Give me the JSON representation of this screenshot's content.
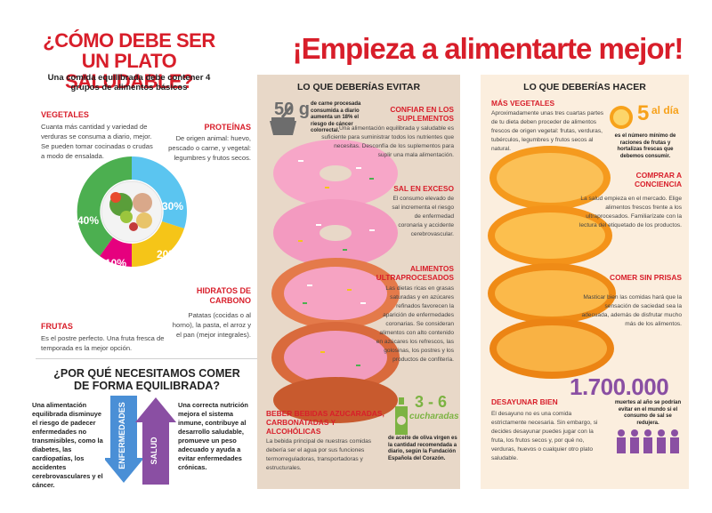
{
  "left": {
    "title": "¿CÓMO DEBE SER UN PLATO SALUDABLE?",
    "subtitle": "Una comida equilibrada debe contener 4 grupos de alimentos básicos",
    "vegetales": {
      "title": "VEGETALES",
      "body": "Cuanta más cantidad y variedad de verduras se consuma a diario, mejor. Se pueden tomar cocinadas o crudas a modo de ensalada.",
      "pct": "40%"
    },
    "proteinas": {
      "title": "PROTEÍNAS",
      "body": "De origen animal: huevo, pescado o carne, y vegetal: legumbres y frutos secos.",
      "pct": "30%"
    },
    "hidratos": {
      "title": "HIDRATOS DE CARBONO",
      "body": "Patatas (cocidas o al horno), la pasta, el arroz y el pan (mejor integrales).",
      "pct": "20%"
    },
    "frutas": {
      "title": "FRUTAS",
      "body": "Es el postre perfecto. Una fruta fresca de temporada es la mejor opción.",
      "pct": "10%"
    },
    "why_title": "¿POR QUÉ NECESITAMOS COMER DE FORMA EQUILIBRADA?",
    "why_left": "Una alimentación equilibrada disminuye el riesgo de padecer enfermedades no transmisibles, como la diabetes, las cardiopatías, los accidentes cerebrovasculares y el cáncer.",
    "why_right": "Una correcta nutrición mejora el sistema inmune, contribuye al desarrollo saludable, promueve un peso adecuado y ayuda a evitar enfermedades crónicas.",
    "arrow_down": "ENFERMEDADES",
    "arrow_up": "SALUD"
  },
  "main_title": "¡Empieza a alimentarte mejor!",
  "evitar": {
    "header": "LO QUE DEBERÍAS EVITAR",
    "sugar_value": "50 g",
    "sugar_text": "de carne procesada consumida a diario aumenta un 18% el riesgo de cáncer colorrectal.",
    "suplementos_title": "CONFIAR EN LOS SUPLEMENTOS",
    "suplementos_body": "Una alimentación equilibrada y saludable es suficiente para suministrar todos los nutrientes que necesitas. Desconfía de los suplementos para suplir una mala alimentación.",
    "sal_title": "SAL EN EXCESO",
    "sal_body": "El consumo elevado de sal incrementa el riesgo de enfermedad coronaria y accidente cerebrovascular.",
    "ultra_title": "ALIMENTOS ULTRAPROCESADOS",
    "ultra_body": "Las dietas ricas en grasas saturadas y en azúcares refinados favorecen la aparición de enfermedades coronarias. Se consideran alimentos con alto contenido en azúcares los refrescos, las golosinas, los postres y los productos de confitería.",
    "bebidas_title": "BEBER BEBIDAS AZUCARADAS, CARBONATADAS Y ALCOHÓLICAS",
    "bebidas_body": "La bebida principal de nuestras comidas debería ser el agua por sus funciones termorreguladoras, transportadoras y estructurales.",
    "oil_value": "3 - 6",
    "oil_unit": "cucharadas",
    "oil_text": "de aceite de oliva virgen es la cantidad recomendada a diario, según la Fundación Española del Corazón."
  },
  "hacer": {
    "header": "LO QUE DEBERÍAS HACER",
    "veg_title": "MÁS VEGETALES",
    "veg_body": "Aproximadamente unas tres cuartas partes de tu dieta deben proceder de alimentos frescos de origen vegetal: frutas, verduras, tubérculos, legumbres y frutos secos al natural.",
    "five_value": "5",
    "five_unit": "al día",
    "five_text": "es el número mínimo de raciones de frutas y hortalizas frescas que debemos consumir.",
    "comprar_title": "COMPRAR A CONCIENCIA",
    "comprar_body": "La salud empieza en el mercado. Elige alimentos frescos frente a los ultraprocesados. Familiarízate con la lectura del etiquetado de los productos.",
    "prisas_title": "COMER SIN PRISAS",
    "prisas_body": "Masticar bien las comidas hará que la sensación de saciedad sea la adecuada, además de disfrutar mucho más de los alimentos.",
    "desayunar_title": "DESAYUNAR BIEN",
    "desayunar_body": "El desayuno no es una comida estrictamente necesaria. Sin embargo, si decides desayunar puedes jugar con la fruta, los frutos secos y, por qué no, verduras, huevos o cualquier otro plato saludable.",
    "big_number": "1.700.000",
    "big_text": "muertes al año se podrían evitar en el mundo si el consumo de sal se redujera."
  },
  "colors": {
    "accent_red": "#d81e2a",
    "vegetales": "#4caf50",
    "proteinas": "#5bc5f0",
    "hidratos": "#f5c518",
    "frutas": "#e6007e",
    "purple": "#8a4fa3",
    "green_icon": "#7cb342",
    "orange": "#f7a21b"
  }
}
